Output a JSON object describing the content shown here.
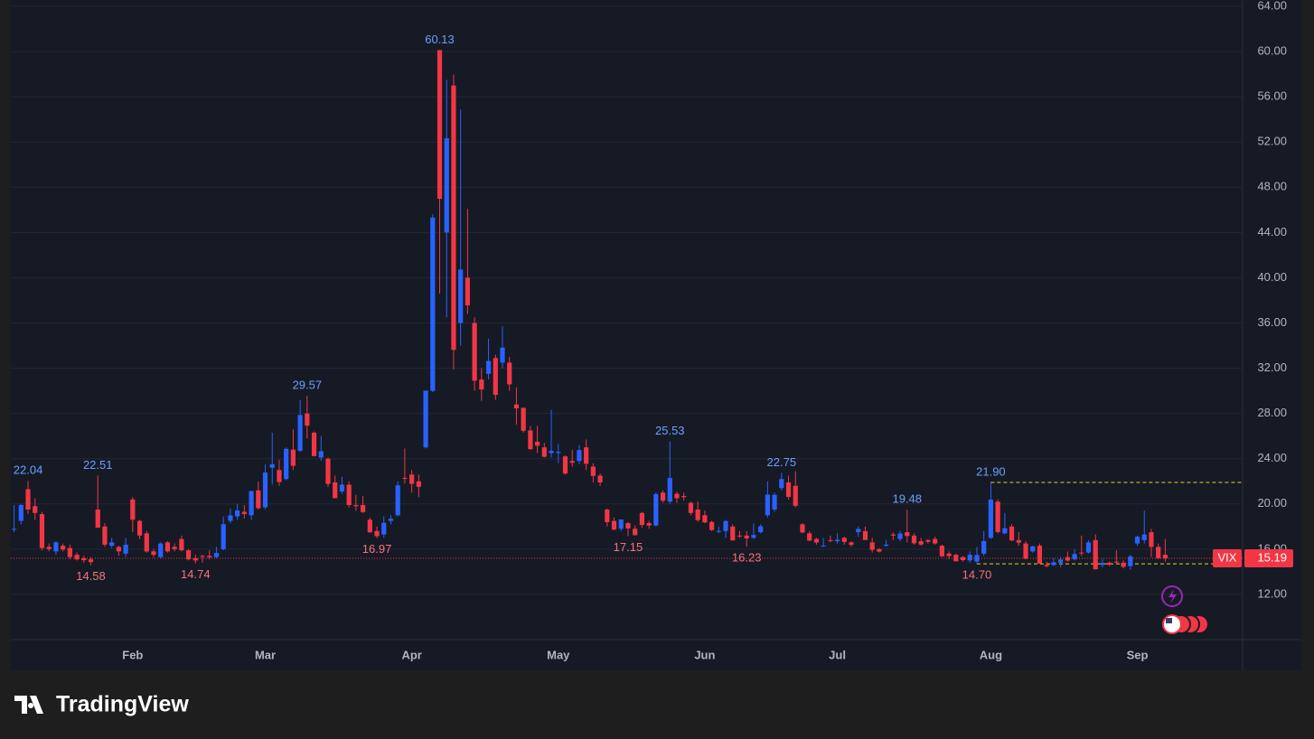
{
  "chart_data": {
    "type": "candlestick",
    "up_color": "#2962ff",
    "down_color": "#f23645",
    "high_label_color": "#6aa0ff",
    "low_label_color": "#f7727d",
    "ylim": [
      8,
      64.56
    ],
    "yticks": [
      {
        "value": 12,
        "label": "12.00"
      },
      {
        "value": 16,
        "label": "16.00"
      },
      {
        "value": 20,
        "label": "20.00"
      },
      {
        "value": 24,
        "label": "24.00"
      },
      {
        "value": 28,
        "label": "28.00"
      },
      {
        "value": 32,
        "label": "32.00"
      },
      {
        "value": 36,
        "label": "36.00"
      },
      {
        "value": 40,
        "label": "40.00"
      },
      {
        "value": 44,
        "label": "44.00"
      },
      {
        "value": 48,
        "label": "48.00"
      },
      {
        "value": 52,
        "label": "52.00"
      },
      {
        "value": 56,
        "label": "56.00"
      },
      {
        "value": 60,
        "label": "60.00"
      },
      {
        "value": 64,
        "label": "64.00"
      }
    ],
    "grid": true,
    "last_price": {
      "name": "VIX",
      "value": 15.19,
      "label": "15.19",
      "color": "#f23645"
    },
    "candles": [
      {
        "open": 17.8,
        "high": 19.9,
        "low": 17.5,
        "close": 17.8
      },
      {
        "open": 18.5,
        "high": 20.0,
        "low": 18.2,
        "close": 19.9
      },
      {
        "open": 21.3,
        "high": 22.04,
        "low": 19.1,
        "close": 19.5,
        "high_label": "22.04"
      },
      {
        "open": 19.8,
        "high": 20.5,
        "low": 18.6,
        "close": 19.2
      },
      {
        "open": 19.1,
        "high": 19.3,
        "low": 15.9,
        "close": 16.1
      },
      {
        "open": 16.2,
        "high": 16.5,
        "low": 15.8,
        "close": 16.0
      },
      {
        "open": 15.8,
        "high": 16.7,
        "low": 15.5,
        "close": 16.6
      },
      {
        "open": 16.3,
        "high": 16.5,
        "low": 15.8,
        "close": 15.97
      },
      {
        "open": 16.1,
        "high": 16.4,
        "low": 15.1,
        "close": 15.3
      },
      {
        "open": 15.5,
        "high": 15.7,
        "low": 15.0,
        "close": 15.1
      },
      {
        "open": 15.2,
        "high": 15.4,
        "low": 14.8,
        "close": 15.02
      },
      {
        "open": 15.1,
        "high": 15.3,
        "low": 14.58,
        "close": 14.85,
        "low_label": "14.58"
      },
      {
        "open": 19.5,
        "high": 22.51,
        "low": 17.9,
        "close": 17.9,
        "high_label": "22.51"
      },
      {
        "open": 18.0,
        "high": 18.3,
        "low": 16.2,
        "close": 16.4
      },
      {
        "open": 16.3,
        "high": 17.0,
        "low": 16.1,
        "close": 16.6
      },
      {
        "open": 16.2,
        "high": 16.3,
        "low": 15.4,
        "close": 15.8
      },
      {
        "open": 15.6,
        "high": 17.0,
        "low": 15.3,
        "close": 16.4
      },
      {
        "date": "Feb",
        "open": 20.4,
        "high": 20.6,
        "low": 17.5,
        "close": 18.6
      },
      {
        "open": 18.5,
        "high": 18.6,
        "low": 16.9,
        "close": 17.2
      },
      {
        "open": 17.4,
        "high": 17.6,
        "low": 15.7,
        "close": 15.8
      },
      {
        "open": 15.8,
        "high": 16.0,
        "low": 15.3,
        "close": 15.5
      },
      {
        "open": 15.3,
        "high": 16.6,
        "low": 15.2,
        "close": 16.5
      },
      {
        "open": 16.6,
        "high": 16.7,
        "low": 15.7,
        "close": 15.8
      },
      {
        "open": 16.2,
        "high": 16.5,
        "low": 15.8,
        "close": 16.0
      },
      {
        "open": 16.9,
        "high": 17.2,
        "low": 15.8,
        "close": 15.9
      },
      {
        "open": 15.9,
        "high": 16.0,
        "low": 15.0,
        "close": 15.1
      },
      {
        "open": 15.2,
        "high": 15.5,
        "low": 14.74,
        "close": 15.0,
        "low_label": "14.74"
      },
      {
        "open": 15.4,
        "high": 15.5,
        "low": 14.8,
        "close": 15.35
      },
      {
        "open": 15.4,
        "high": 15.9,
        "low": 15.1,
        "close": 15.27
      },
      {
        "open": 15.3,
        "high": 16.2,
        "low": 15.2,
        "close": 15.66
      },
      {
        "open": 16.0,
        "high": 18.9,
        "low": 15.9,
        "close": 18.21
      },
      {
        "open": 18.5,
        "high": 19.6,
        "low": 18.3,
        "close": 18.98
      },
      {
        "open": 18.9,
        "high": 20.0,
        "low": 18.6,
        "close": 19.43
      },
      {
        "open": 19.3,
        "high": 19.9,
        "low": 18.7,
        "close": 19.1
      },
      {
        "open": 19.0,
        "high": 21.2,
        "low": 18.6,
        "close": 21.13
      },
      {
        "open": 21.2,
        "high": 22.0,
        "low": 19.5,
        "close": 19.63
      },
      {
        "date": "Mar",
        "open": 19.7,
        "high": 23.5,
        "low": 19.5,
        "close": 22.78
      },
      {
        "open": 23.2,
        "high": 26.3,
        "low": 21.7,
        "close": 23.51
      },
      {
        "open": 23.0,
        "high": 23.9,
        "low": 21.6,
        "close": 21.93
      },
      {
        "open": 22.2,
        "high": 25.0,
        "low": 22.1,
        "close": 24.87
      },
      {
        "open": 24.8,
        "high": 26.6,
        "low": 23.0,
        "close": 23.37
      },
      {
        "open": 24.7,
        "high": 29.2,
        "low": 24.6,
        "close": 27.86
      },
      {
        "open": 28.0,
        "high": 29.57,
        "low": 25.8,
        "close": 26.92,
        "high_label": "29.57"
      },
      {
        "open": 26.3,
        "high": 26.4,
        "low": 24.2,
        "close": 24.23
      },
      {
        "open": 24.1,
        "high": 26.0,
        "low": 23.8,
        "close": 24.66
      },
      {
        "open": 24.0,
        "high": 24.1,
        "low": 21.5,
        "close": 21.77
      },
      {
        "open": 21.9,
        "high": 22.5,
        "low": 20.5,
        "close": 20.51
      },
      {
        "open": 21.1,
        "high": 22.4,
        "low": 20.9,
        "close": 21.7
      },
      {
        "open": 21.7,
        "high": 22.0,
        "low": 19.7,
        "close": 19.9
      },
      {
        "open": 19.9,
        "high": 20.8,
        "low": 19.4,
        "close": 19.8
      },
      {
        "open": 19.9,
        "high": 20.7,
        "low": 19.2,
        "close": 19.28
      },
      {
        "open": 18.6,
        "high": 18.8,
        "low": 17.5,
        "close": 17.48
      },
      {
        "open": 17.6,
        "high": 18.0,
        "low": 16.97,
        "close": 17.15,
        "low_label": "16.97"
      },
      {
        "open": 17.3,
        "high": 18.9,
        "low": 17.0,
        "close": 18.33
      },
      {
        "open": 18.5,
        "high": 19.0,
        "low": 18.2,
        "close": 18.69
      },
      {
        "open": 19.0,
        "high": 22.0,
        "low": 18.9,
        "close": 21.65
      },
      {
        "open": 22.3,
        "high": 24.9,
        "low": 21.8,
        "close": 22.28
      },
      {
        "date": "Apr",
        "open": 22.6,
        "high": 23.0,
        "low": 21.0,
        "close": 21.77
      },
      {
        "open": 22.0,
        "high": 22.6,
        "low": 20.6,
        "close": 21.51
      },
      {
        "open": 25.0,
        "high": 30.0,
        "low": 24.9,
        "close": 30.02
      },
      {
        "open": 30.0,
        "high": 45.6,
        "low": 29.9,
        "close": 45.31
      },
      {
        "open": 60.13,
        "high": 60.13,
        "low": 38.6,
        "close": 46.98,
        "high_label": "60.13"
      },
      {
        "open": 44.0,
        "high": 57.5,
        "low": 36.5,
        "close": 52.33
      },
      {
        "open": 57.0,
        "high": 57.96,
        "low": 31.9,
        "close": 33.62
      },
      {
        "open": 36.0,
        "high": 54.87,
        "low": 34.0,
        "close": 40.72
      },
      {
        "open": 40.0,
        "high": 46.1,
        "low": 36.8,
        "close": 37.56
      },
      {
        "open": 36.0,
        "high": 36.5,
        "low": 30.0,
        "close": 30.89
      },
      {
        "open": 31.0,
        "high": 32.0,
        "low": 29.1,
        "close": 30.12
      },
      {
        "open": 31.5,
        "high": 34.6,
        "low": 31.0,
        "close": 32.64
      },
      {
        "open": 32.9,
        "high": 33.2,
        "low": 29.2,
        "close": 29.65
      },
      {
        "open": 32.5,
        "high": 35.7,
        "low": 32.0,
        "close": 33.82
      },
      {
        "open": 32.5,
        "high": 33.0,
        "low": 30.0,
        "close": 30.57
      },
      {
        "open": 28.8,
        "high": 30.3,
        "low": 27.0,
        "close": 28.45
      },
      {
        "open": 28.5,
        "high": 28.5,
        "low": 26.3,
        "close": 26.47
      },
      {
        "open": 26.5,
        "high": 26.9,
        "low": 24.8,
        "close": 24.84
      },
      {
        "open": 25.5,
        "high": 26.9,
        "low": 24.5,
        "close": 25.15
      },
      {
        "open": 25.0,
        "high": 25.4,
        "low": 24.1,
        "close": 24.17
      },
      {
        "open": 24.5,
        "high": 28.3,
        "low": 24.1,
        "close": 24.7
      },
      {
        "date": "May",
        "open": 24.5,
        "high": 25.3,
        "low": 23.6,
        "close": 24.6
      },
      {
        "open": 24.2,
        "high": 24.3,
        "low": 22.6,
        "close": 22.68
      },
      {
        "open": 23.8,
        "high": 24.8,
        "low": 23.3,
        "close": 23.64
      },
      {
        "open": 23.8,
        "high": 25.2,
        "low": 23.5,
        "close": 24.76
      },
      {
        "open": 25.0,
        "high": 25.7,
        "low": 23.0,
        "close": 23.55
      },
      {
        "open": 23.3,
        "high": 23.6,
        "low": 21.9,
        "close": 22.48
      },
      {
        "open": 22.5,
        "high": 22.7,
        "low": 21.6,
        "close": 21.9
      },
      {
        "open": 19.5,
        "high": 19.6,
        "low": 18.0,
        "close": 18.39
      },
      {
        "open": 18.5,
        "high": 18.8,
        "low": 17.7,
        "close": 17.72
      },
      {
        "open": 17.8,
        "high": 18.6,
        "low": 17.6,
        "close": 18.62
      },
      {
        "open": 18.3,
        "high": 18.4,
        "low": 17.15,
        "close": 17.83,
        "low_label": "17.15"
      },
      {
        "open": 17.8,
        "high": 18.1,
        "low": 17.2,
        "close": 17.24
      },
      {
        "open": 19.2,
        "high": 19.3,
        "low": 17.9,
        "close": 18.14
      },
      {
        "open": 18.3,
        "high": 18.5,
        "low": 17.8,
        "close": 18.09
      },
      {
        "open": 18.1,
        "high": 21.0,
        "low": 18.0,
        "close": 20.87
      },
      {
        "open": 21.0,
        "high": 21.2,
        "low": 20.1,
        "close": 20.28
      },
      {
        "open": 20.2,
        "high": 25.53,
        "low": 20.0,
        "close": 22.29,
        "high_label": "25.53"
      },
      {
        "open": 20.9,
        "high": 21.1,
        "low": 20.1,
        "close": 20.5
      },
      {
        "open": 20.7,
        "high": 21.0,
        "low": 20.3,
        "close": 20.6
      },
      {
        "open": 20.1,
        "high": 20.2,
        "low": 19.0,
        "close": 19.2
      },
      {
        "open": 19.5,
        "high": 20.2,
        "low": 18.4,
        "close": 18.57
      },
      {
        "date": "Jun",
        "open": 19.0,
        "high": 19.4,
        "low": 18.3,
        "close": 18.36
      },
      {
        "open": 18.4,
        "high": 18.5,
        "low": 17.6,
        "close": 17.69
      },
      {
        "open": 17.6,
        "high": 18.0,
        "low": 17.4,
        "close": 17.61
      },
      {
        "open": 17.6,
        "high": 18.6,
        "low": 17.0,
        "close": 18.48
      },
      {
        "open": 18.0,
        "high": 18.2,
        "low": 16.8,
        "close": 16.77
      },
      {
        "open": 17.2,
        "high": 17.6,
        "low": 17.0,
        "close": 17.16
      },
      {
        "open": 17.2,
        "high": 17.6,
        "low": 16.23,
        "close": 16.95,
        "low_label": "16.23"
      },
      {
        "open": 17.0,
        "high": 18.3,
        "low": 16.9,
        "close": 17.26
      },
      {
        "open": 17.5,
        "high": 18.2,
        "low": 17.4,
        "close": 18.02
      },
      {
        "open": 19.0,
        "high": 22.0,
        "low": 18.8,
        "close": 20.82
      },
      {
        "open": 19.5,
        "high": 21.0,
        "low": 19.3,
        "close": 20.8
      },
      {
        "open": 21.4,
        "high": 22.75,
        "low": 21.2,
        "close": 22.2,
        "high_label": "22.75"
      },
      {
        "open": 21.9,
        "high": 22.5,
        "low": 20.4,
        "close": 20.62
      },
      {
        "open": 21.6,
        "high": 22.9,
        "low": 19.7,
        "close": 19.83
      },
      {
        "open": 18.2,
        "high": 18.3,
        "low": 17.4,
        "close": 17.48
      },
      {
        "open": 17.4,
        "high": 17.6,
        "low": 16.7,
        "close": 16.76
      },
      {
        "open": 16.9,
        "high": 17.0,
        "low": 16.4,
        "close": 16.59
      },
      {
        "open": 16.3,
        "high": 17.0,
        "low": 16.2,
        "close": 16.32
      },
      {
        "open": 16.8,
        "high": 17.2,
        "low": 16.6,
        "close": 16.73
      },
      {
        "date": "Jul",
        "open": 16.7,
        "high": 17.4,
        "low": 16.5,
        "close": 16.83
      },
      {
        "open": 17.0,
        "high": 17.1,
        "low": 16.4,
        "close": 16.64
      },
      {
        "open": 16.6,
        "high": 16.7,
        "low": 16.2,
        "close": 16.38
      },
      {
        "open": 17.5,
        "high": 18.0,
        "low": 17.1,
        "close": 17.79
      },
      {
        "open": 17.6,
        "high": 18.0,
        "low": 16.9,
        "close": 16.81
      },
      {
        "open": 16.6,
        "high": 17.0,
        "low": 15.7,
        "close": 15.94
      },
      {
        "open": 16.0,
        "high": 16.1,
        "low": 15.7,
        "close": 15.78
      },
      {
        "open": 16.3,
        "high": 16.8,
        "low": 16.2,
        "close": 16.4
      },
      {
        "open": 17.3,
        "high": 17.5,
        "low": 16.8,
        "close": 17.2
      },
      {
        "open": 16.9,
        "high": 17.6,
        "low": 16.7,
        "close": 17.38
      },
      {
        "open": 17.5,
        "high": 19.48,
        "low": 16.6,
        "close": 17.16,
        "high_label": "19.48"
      },
      {
        "open": 17.2,
        "high": 17.4,
        "low": 16.4,
        "close": 16.52
      },
      {
        "open": 16.7,
        "high": 17.0,
        "low": 16.3,
        "close": 16.41
      },
      {
        "open": 16.8,
        "high": 16.9,
        "low": 16.5,
        "close": 16.65
      },
      {
        "open": 16.9,
        "high": 17.1,
        "low": 16.4,
        "close": 16.5
      },
      {
        "open": 16.3,
        "high": 16.4,
        "low": 15.3,
        "close": 15.37
      },
      {
        "open": 15.6,
        "high": 15.8,
        "low": 15.1,
        "close": 15.39
      },
      {
        "open": 15.5,
        "high": 15.6,
        "low": 14.9,
        "close": 14.93
      },
      {
        "open": 15.3,
        "high": 15.4,
        "low": 14.9,
        "close": 15.03
      },
      {
        "open": 15.0,
        "high": 15.8,
        "low": 14.8,
        "close": 15.5
      },
      {
        "open": 14.9,
        "high": 16.2,
        "low": 14.7,
        "close": 15.48,
        "low_label": "14.70",
        "low_line": "#e8d22a"
      },
      {
        "open": 15.6,
        "high": 17.6,
        "low": 15.4,
        "close": 16.72
      },
      {
        "date": "Aug",
        "open": 17.0,
        "high": 21.9,
        "low": 16.9,
        "close": 20.38,
        "high_label": "21.90",
        "high_line": "#e8d22a"
      },
      {
        "open": 20.2,
        "high": 20.4,
        "low": 17.4,
        "close": 17.52
      },
      {
        "open": 17.4,
        "high": 19.2,
        "low": 17.3,
        "close": 17.85
      },
      {
        "open": 18.0,
        "high": 18.2,
        "low": 16.7,
        "close": 16.77
      },
      {
        "open": 16.8,
        "high": 17.5,
        "low": 16.3,
        "close": 16.57
      },
      {
        "open": 16.5,
        "high": 16.7,
        "low": 15.1,
        "close": 15.15
      },
      {
        "open": 15.8,
        "high": 16.3,
        "low": 15.7,
        "close": 16.25
      },
      {
        "open": 16.3,
        "high": 16.5,
        "low": 14.7,
        "close": 14.73
      },
      {
        "open": 14.6,
        "high": 14.9,
        "low": 14.4,
        "close": 14.49
      },
      {
        "open": 14.6,
        "high": 15.2,
        "low": 14.5,
        "close": 14.83
      },
      {
        "open": 14.8,
        "high": 15.3,
        "low": 14.4,
        "close": 15.09
      },
      {
        "open": 15.3,
        "high": 15.8,
        "low": 14.9,
        "close": 14.99
      },
      {
        "open": 15.1,
        "high": 16.0,
        "low": 15.0,
        "close": 15.57
      },
      {
        "open": 15.7,
        "high": 17.2,
        "low": 15.4,
        "close": 15.69
      },
      {
        "open": 15.7,
        "high": 16.8,
        "low": 15.6,
        "close": 16.6
      },
      {
        "open": 16.8,
        "high": 17.3,
        "low": 14.2,
        "close": 14.22
      },
      {
        "open": 14.6,
        "high": 15.1,
        "low": 14.4,
        "close": 14.79
      },
      {
        "open": 14.8,
        "high": 14.9,
        "low": 14.5,
        "close": 14.62
      },
      {
        "open": 14.9,
        "high": 15.9,
        "low": 14.7,
        "close": 14.85
      },
      {
        "open": 14.8,
        "high": 15.0,
        "low": 14.3,
        "close": 14.43
      },
      {
        "open": 14.5,
        "high": 15.5,
        "low": 14.2,
        "close": 15.36
      },
      {
        "date": "Sep",
        "open": 16.5,
        "high": 17.2,
        "low": 16.3,
        "close": 17.1
      },
      {
        "open": 16.8,
        "high": 19.4,
        "low": 16.5,
        "close": 17.3
      },
      {
        "open": 17.5,
        "high": 17.8,
        "low": 15.3,
        "close": 16.2
      },
      {
        "open": 16.2,
        "high": 16.5,
        "low": 15.1,
        "close": 15.2
      },
      {
        "open": 15.5,
        "high": 16.9,
        "low": 14.9,
        "close": 15.19
      }
    ]
  },
  "branding": "TradingView"
}
